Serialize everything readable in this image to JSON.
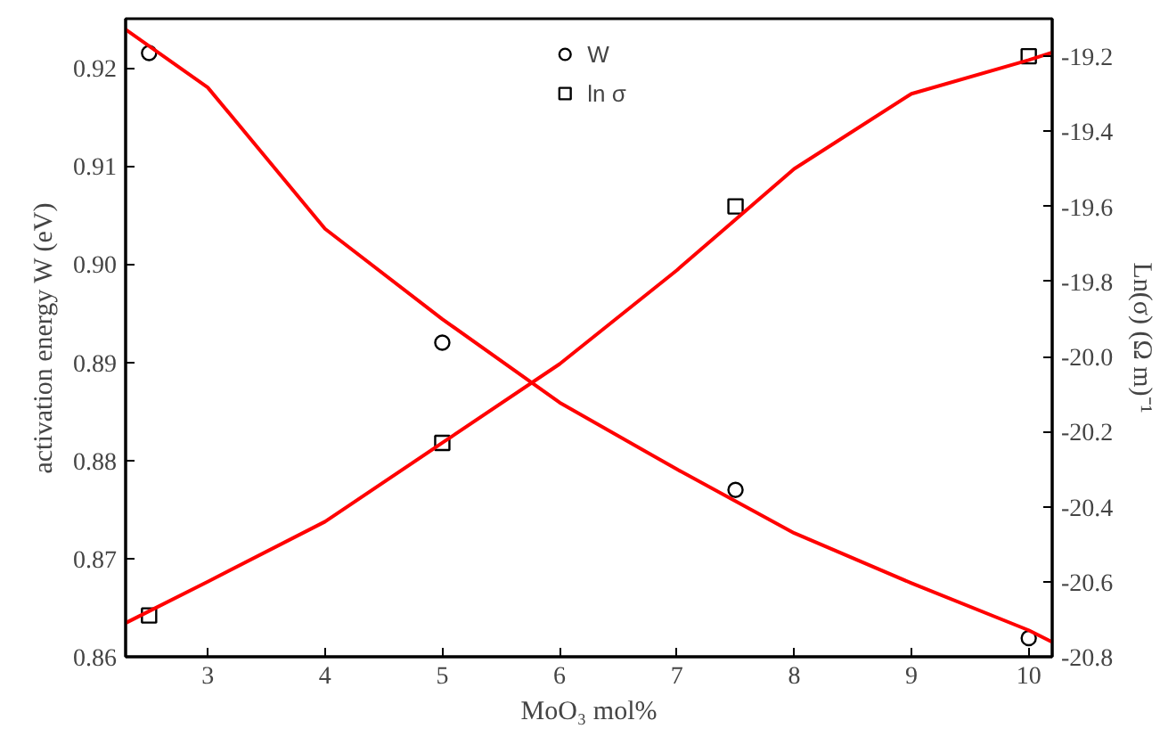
{
  "chart_data": {
    "type": "scatter",
    "xlabel": "MoO₃ mol%",
    "ylabel": "activation energy W (eV)",
    "y2label": "Ln(σ) (Ω m)⁻¹",
    "xlim": [
      2.3,
      10.2
    ],
    "xticks": [
      3,
      4,
      5,
      6,
      7,
      8,
      9,
      10
    ],
    "ylim": [
      0.86,
      0.925
    ],
    "yticks": [
      0.86,
      0.87,
      0.88,
      0.89,
      {
        "value": 0.9,
        "label": "0.90"
      },
      0.91,
      0.92
    ],
    "y2lim": [
      -20.8,
      -19.1
    ],
    "y2ticks": [
      -20.8,
      -20.6,
      -20.4,
      -20.2,
      {
        "value": -20.0,
        "label": "-20.0"
      },
      -19.8,
      -19.6,
      -19.4,
      -19.2
    ],
    "grid": false,
    "legend": "top",
    "series": [
      {
        "name": "W",
        "marker": "circle",
        "color": "#000000",
        "x": [
          2.5,
          5,
          7.5,
          10
        ],
        "values": [
          0.9215,
          0.892,
          0.877,
          0.8619
        ]
      },
      {
        "name": "ln σ",
        "marker": "square",
        "axis": "y2",
        "color": "#000000",
        "x": [
          2.5,
          5,
          7.5,
          10
        ],
        "values": [
          -20.69,
          -20.23,
          -19.6,
          -19.2
        ]
      },
      {
        "type": "line",
        "color": "#ff0000",
        "x": [
          2.3,
          3,
          4,
          5,
          6,
          7,
          8,
          9,
          10,
          10.2
        ],
        "values": [
          0.9239,
          0.918,
          0.9036,
          0.8944,
          0.8859,
          0.8791,
          0.8726,
          0.8675,
          0.8627,
          0.8615
        ]
      },
      {
        "type": "line",
        "axis": "y2",
        "color": "#ff0000",
        "x": [
          2.3,
          3,
          4,
          5,
          6,
          7,
          8,
          9,
          10,
          10.2
        ],
        "values": [
          -20.71,
          -20.6,
          -20.44,
          -20.23,
          -20.02,
          -19.77,
          -19.5,
          -19.3,
          -19.21,
          -19.19
        ]
      }
    ]
  }
}
